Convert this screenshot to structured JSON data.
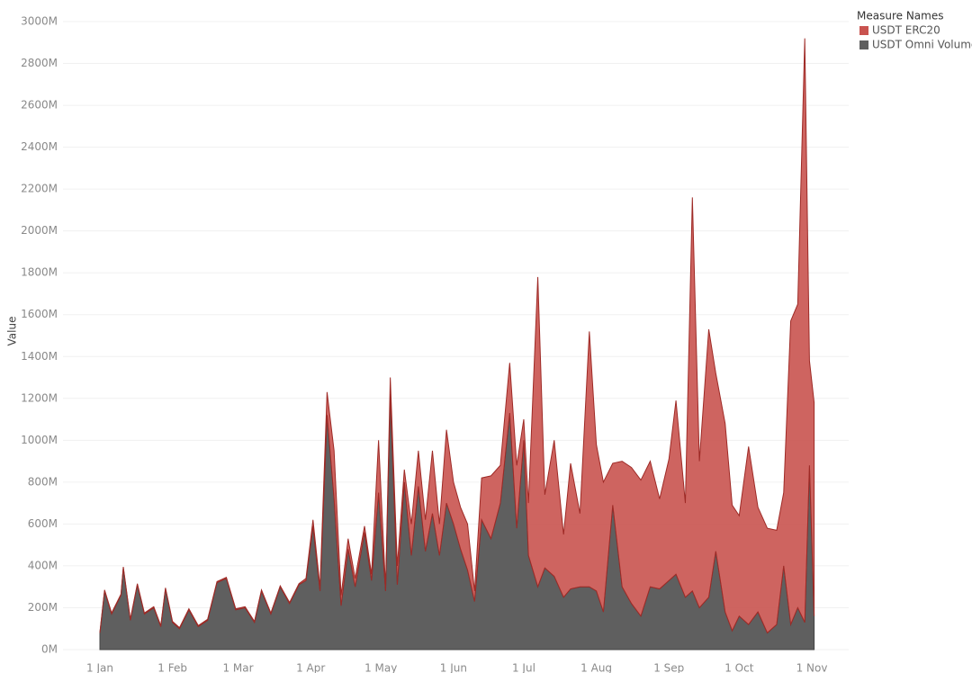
{
  "chart_data": {
    "type": "area",
    "y_label": "Value",
    "legend_title": "Measure Names",
    "legend_position": "top-right",
    "stacked": true,
    "grid": true,
    "x": [
      "1 Jan",
      "3 Jan",
      "6 Jan",
      "10 Jan",
      "11 Jan",
      "14 Jan",
      "17 Jan",
      "20 Jan",
      "24 Jan",
      "27 Jan",
      "29 Jan",
      "1 Feb",
      "4 Feb",
      "8 Feb",
      "12 Feb",
      "16 Feb",
      "20 Feb",
      "24 Feb",
      "28 Feb",
      "4 Mar",
      "8 Mar",
      "11 Mar",
      "15 Mar",
      "19 Mar",
      "23 Mar",
      "27 Mar",
      "30 Mar",
      "2 Apr",
      "5 Apr",
      "8 Apr",
      "11 Apr",
      "14 Apr",
      "17 Apr",
      "20 Apr",
      "24 Apr",
      "27 Apr",
      "30 Apr",
      "3 May",
      "5 May",
      "8 May",
      "11 May",
      "14 May",
      "17 May",
      "20 May",
      "23 May",
      "26 May",
      "29 May",
      "1 Jun",
      "4 Jun",
      "7 Jun",
      "10 Jun",
      "13 Jun",
      "17 Jun",
      "21 Jun",
      "25 Jun",
      "28 Jun",
      "1 Jul",
      "3 Jul",
      "7 Jul",
      "10 Jul",
      "14 Jul",
      "18 Jul",
      "21 Jul",
      "25 Jul",
      "29 Jul",
      "1 Aug",
      "4 Aug",
      "8 Aug",
      "12 Aug",
      "16 Aug",
      "20 Aug",
      "24 Aug",
      "28 Aug",
      "1 Sep",
      "4 Sep",
      "8 Sep",
      "11 Sep",
      "14 Sep",
      "18 Sep",
      "21 Sep",
      "25 Sep",
      "28 Sep",
      "1 Oct",
      "5 Oct",
      "9 Oct",
      "13 Oct",
      "17 Oct",
      "20 Oct",
      "23 Oct",
      "26 Oct",
      "29 Oct",
      "31 Oct",
      "2 Nov"
    ],
    "series": [
      {
        "name": "USDT Omni Volume",
        "color": "#5f5f5f",
        "values": [
          80,
          280,
          170,
          260,
          390,
          140,
          310,
          170,
          200,
          110,
          290,
          130,
          100,
          190,
          110,
          140,
          320,
          340,
          190,
          200,
          130,
          280,
          170,
          300,
          220,
          310,
          330,
          590,
          280,
          1120,
          720,
          210,
          480,
          300,
          560,
          330,
          750,
          280,
          1220,
          310,
          800,
          450,
          780,
          470,
          650,
          450,
          700,
          600,
          480,
          380,
          230,
          620,
          530,
          700,
          1130,
          580,
          1000,
          450,
          300,
          390,
          350,
          250,
          290,
          300,
          300,
          280,
          180,
          690,
          300,
          220,
          160,
          300,
          290,
          330,
          360,
          250,
          280,
          200,
          250,
          470,
          180,
          90,
          160,
          120,
          180,
          80,
          120,
          400,
          120,
          200,
          130,
          880,
          160
        ]
      },
      {
        "name": "USDT ERC20",
        "color": "#c9534f",
        "values": [
          2,
          5,
          5,
          5,
          5,
          5,
          5,
          5,
          5,
          5,
          5,
          5,
          5,
          5,
          5,
          5,
          5,
          5,
          5,
          5,
          5,
          5,
          5,
          5,
          5,
          5,
          10,
          30,
          20,
          110,
          230,
          50,
          50,
          40,
          30,
          30,
          250,
          20,
          80,
          90,
          60,
          150,
          170,
          150,
          300,
          150,
          350,
          200,
          200,
          220,
          50,
          200,
          300,
          180,
          240,
          300,
          100,
          250,
          1480,
          350,
          650,
          300,
          600,
          350,
          1220,
          700,
          620,
          200,
          600,
          650,
          650,
          600,
          430,
          580,
          830,
          450,
          1880,
          700,
          1280,
          850,
          900,
          600,
          480,
          850,
          500,
          500,
          450,
          350,
          1450,
          1450,
          2790,
          500,
          1020
        ]
      }
    ],
    "xticks": [
      "1 Jan",
      "1 Feb",
      "1 Mar",
      "1 Apr",
      "1 May",
      "1 Jun",
      "1 Jul",
      "1 Aug",
      "1 Sep",
      "1 Oct",
      "1 Nov"
    ],
    "ylim": [
      0,
      3000
    ],
    "yticks": [
      {
        "value": 0,
        "label": "0M"
      },
      {
        "value": 200,
        "label": "200M"
      },
      {
        "value": 400,
        "label": "400M"
      },
      {
        "value": 600,
        "label": "600M"
      },
      {
        "value": 800,
        "label": "800M"
      },
      {
        "value": 1000,
        "label": "1000M"
      },
      {
        "value": 1200,
        "label": "1200M"
      },
      {
        "value": 1400,
        "label": "1400M"
      },
      {
        "value": 1600,
        "label": "1600M"
      },
      {
        "value": 1800,
        "label": "1800M"
      },
      {
        "value": 2000,
        "label": "2000M"
      },
      {
        "value": 2200,
        "label": "2200M"
      },
      {
        "value": 2400,
        "label": "2400M"
      },
      {
        "value": 2600,
        "label": "2600M"
      },
      {
        "value": 2800,
        "label": "2800M"
      },
      {
        "value": 3000,
        "label": "3000M"
      }
    ]
  }
}
